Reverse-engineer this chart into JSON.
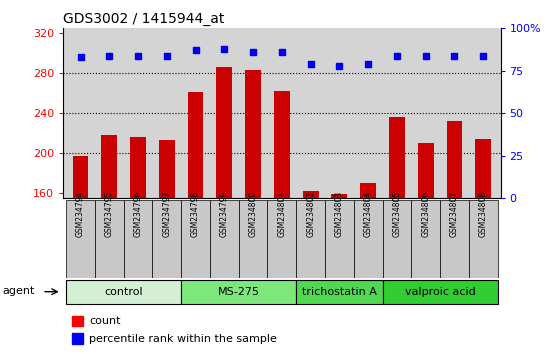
{
  "title": "GDS3002 / 1415944_at",
  "samples": [
    "GSM234794",
    "GSM234795",
    "GSM234796",
    "GSM234797",
    "GSM234798",
    "GSM234799",
    "GSM234800",
    "GSM234801",
    "GSM234802",
    "GSM234803",
    "GSM234804",
    "GSM234805",
    "GSM234806",
    "GSM234807",
    "GSM234808"
  ],
  "counts": [
    197,
    218,
    216,
    213,
    261,
    286,
    283,
    262,
    162,
    159,
    170,
    236,
    210,
    232,
    214
  ],
  "percentiles": [
    83,
    84,
    84,
    84,
    87,
    88,
    86,
    86,
    79,
    78,
    79,
    84,
    84,
    84,
    84
  ],
  "groups": [
    {
      "label": "control",
      "start": 0,
      "end": 3,
      "color": "#d4f0d4"
    },
    {
      "label": "MS-275",
      "start": 4,
      "end": 7,
      "color": "#7ce87c"
    },
    {
      "label": "trichostatin A",
      "start": 8,
      "end": 10,
      "color": "#50d850"
    },
    {
      "label": "valproic acid",
      "start": 11,
      "end": 14,
      "color": "#32cd32"
    }
  ],
  "ylim_left": [
    155,
    325
  ],
  "ylim_right": [
    0,
    100
  ],
  "yticks_left": [
    160,
    200,
    240,
    280,
    320
  ],
  "yticks_right": [
    0,
    25,
    50,
    75,
    100
  ],
  "bar_color": "#cc0000",
  "dot_color": "#0000ee",
  "plot_bg": "#d4d4d4",
  "label_bg": "#c8c8c8",
  "bar_width": 0.55
}
